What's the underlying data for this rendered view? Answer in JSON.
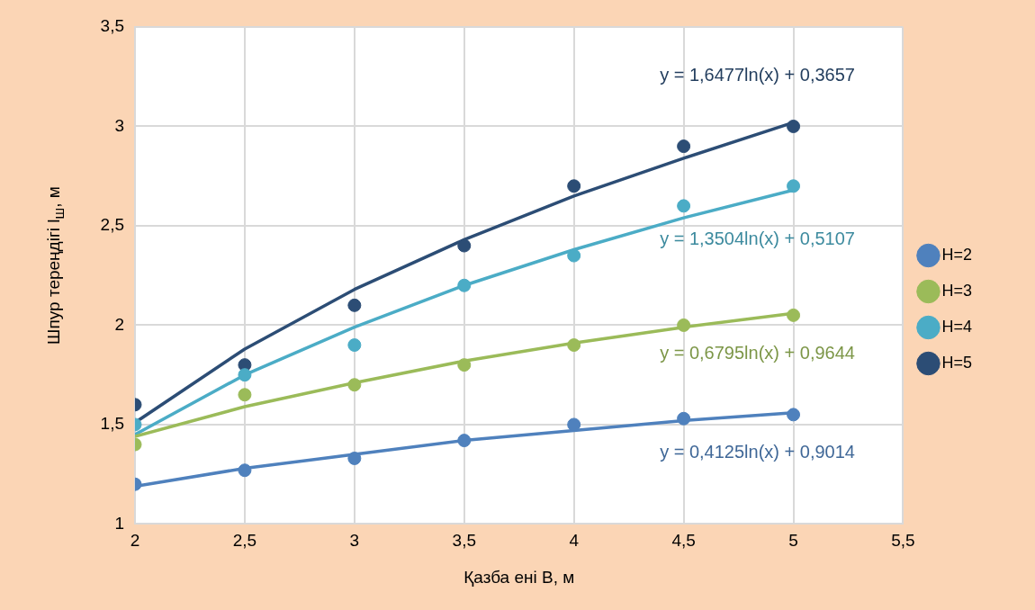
{
  "chart_data": {
    "type": "scatter",
    "xlabel": "Қазба ені В, м",
    "ylabel": "Шпур тереңдігі l$_{ш}$, м",
    "xlim": [
      2,
      5.5
    ],
    "xticks": [
      2,
      {
        "value": 2.5,
        "label": "2,5"
      },
      3,
      {
        "value": 3.5,
        "label": "3,5"
      },
      4,
      {
        "value": 4.5,
        "label": "4,5"
      },
      5,
      {
        "value": 5.5,
        "label": "5,5"
      }
    ],
    "ylim": [
      1,
      3.5
    ],
    "yticks": [
      1,
      {
        "value": 1.5,
        "label": "1,5"
      },
      2,
      {
        "value": 2.5,
        "label": "2,5"
      },
      3,
      {
        "value": 3.5,
        "label": "3,5"
      }
    ],
    "x": [
      2,
      2.5,
      3,
      3.5,
      4,
      4.5,
      5
    ],
    "grid": true,
    "legend": "right",
    "marker": "circle",
    "series": [
      {
        "name": "H=2",
        "color": "#4f81bd",
        "values": [
          1.2,
          1.27,
          1.33,
          1.42,
          1.5,
          1.53,
          1.55
        ]
      },
      {
        "name": "H=3",
        "color": "#9bbb59",
        "values": [
          1.4,
          1.65,
          1.7,
          1.8,
          1.9,
          2.0,
          2.05
        ]
      },
      {
        "name": "H=4",
        "color": "#4bacc6",
        "values": [
          1.5,
          1.75,
          1.9,
          2.2,
          2.35,
          2.6,
          2.7
        ]
      },
      {
        "name": "H=5",
        "color": "#2c4d75",
        "values": [
          1.6,
          1.8,
          2.1,
          2.4,
          2.7,
          2.9,
          3.0
        ]
      },
      {
        "type": "line",
        "color": "#4f81bd",
        "marker": "none",
        "values": [
          1.19,
          1.28,
          1.35,
          1.42,
          1.47,
          1.52,
          1.56
        ]
      },
      {
        "type": "line",
        "color": "#9bbb59",
        "marker": "none",
        "values": [
          1.44,
          1.59,
          1.71,
          1.82,
          1.91,
          1.99,
          2.06
        ]
      },
      {
        "type": "line",
        "color": "#4bacc6",
        "marker": "none",
        "values": [
          1.45,
          1.75,
          1.99,
          2.2,
          2.38,
          2.54,
          2.68
        ]
      },
      {
        "type": "line",
        "color": "#2c4d75",
        "marker": "none",
        "values": [
          1.51,
          1.88,
          2.18,
          2.43,
          2.65,
          2.84,
          3.02
        ]
      }
    ],
    "annotations": [
      "y = 0,4125ln(x) + 0,9014",
      "y = 0,6795ln(x) + 0,9644",
      "y = 1,3504ln(x) + 0,5107",
      "y = 1,6477ln(x) + 0,3657"
    ]
  }
}
